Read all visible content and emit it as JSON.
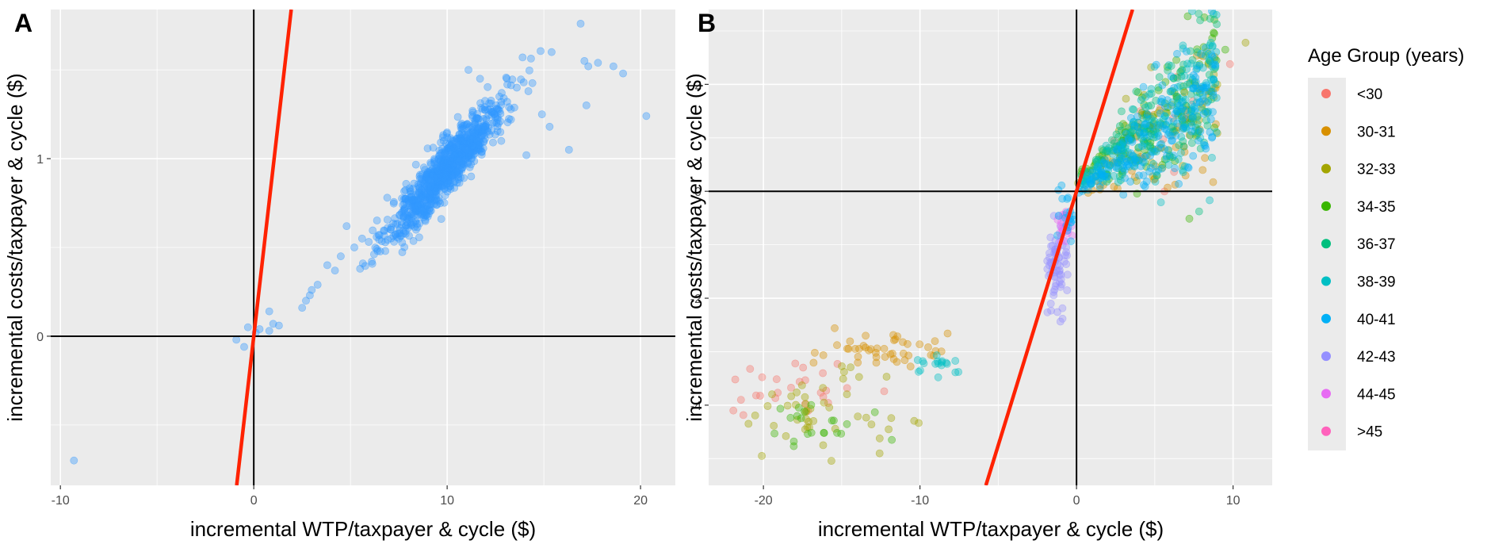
{
  "chart_data": [
    {
      "panel_label": "A",
      "type": "scatter",
      "xlabel": "incremental WTP/taxpayer & cycle ($)",
      "ylabel": "incremental costs/taxpayer & cycle ($)",
      "xlim": [
        -10.5,
        21.8
      ],
      "ylim": [
        -0.84,
        1.84
      ],
      "x_ticks": [
        -10,
        0,
        10,
        20
      ],
      "y_ticks": [
        0,
        1
      ],
      "point_color": "#3399ff",
      "reference_line": {
        "color": "#ff2200",
        "slope": 0.95,
        "intercept": 0
      },
      "cluster": {
        "center_x": 10,
        "center_y": 0.95,
        "spread_x": 1.5,
        "spread_y": 0.12,
        "count": 900
      },
      "points": [
        [
          -9.3,
          -0.7
        ],
        [
          -0.9,
          -0.02
        ],
        [
          -0.5,
          -0.06
        ],
        [
          -0.3,
          0.05
        ],
        [
          0.1,
          0.02
        ],
        [
          0.3,
          0.04
        ],
        [
          0.8,
          0.03
        ],
        [
          1.0,
          0.07
        ],
        [
          0.8,
          0.14
        ],
        [
          1.3,
          0.06
        ],
        [
          2.5,
          0.16
        ],
        [
          2.7,
          0.2
        ],
        [
          2.9,
          0.23
        ],
        [
          3.0,
          0.26
        ],
        [
          3.3,
          0.29
        ],
        [
          3.8,
          0.4
        ],
        [
          4.2,
          0.37
        ],
        [
          4.5,
          0.45
        ],
        [
          5.2,
          0.5
        ],
        [
          5.6,
          0.55
        ],
        [
          6.1,
          0.42
        ],
        [
          6.5,
          0.57
        ],
        [
          7.1,
          0.6
        ],
        [
          4.8,
          0.62
        ],
        [
          5.5,
          0.38
        ],
        [
          6.8,
          0.48
        ],
        [
          7.5,
          0.55
        ],
        [
          8.0,
          0.66
        ],
        [
          16.9,
          1.76
        ],
        [
          17.1,
          1.55
        ],
        [
          17.3,
          1.52
        ],
        [
          17.8,
          1.54
        ],
        [
          18.6,
          1.52
        ],
        [
          19.1,
          1.48
        ],
        [
          20.3,
          1.24
        ],
        [
          16.3,
          1.05
        ],
        [
          15.4,
          1.6
        ],
        [
          15.3,
          1.18
        ],
        [
          14.9,
          1.25
        ],
        [
          14.2,
          1.38
        ],
        [
          13.6,
          1.4
        ],
        [
          13.9,
          1.57
        ],
        [
          13.1,
          1.32
        ],
        [
          12.7,
          1.35
        ],
        [
          12.2,
          1.28
        ],
        [
          11.7,
          1.45
        ],
        [
          11.1,
          1.5
        ],
        [
          14.1,
          1.02
        ],
        [
          13.3,
          1.22
        ],
        [
          12.8,
          1.1
        ],
        [
          17.2,
          1.3
        ],
        [
          6.9,
          0.78
        ],
        [
          7.8,
          0.72
        ],
        [
          8.5,
          0.75
        ]
      ]
    },
    {
      "panel_label": "B",
      "type": "scatter",
      "xlabel": "incremental WTP/taxpayer & cycle ($)",
      "ylabel": "incremental costs/taxpayer & cycle ($)",
      "xlim": [
        -23.5,
        12.5
      ],
      "ylim": [
        -5.5,
        3.4
      ],
      "x_ticks": [
        -20,
        -10,
        0,
        10
      ],
      "y_ticks": [
        -4,
        -2,
        0,
        2
      ],
      "reference_line": {
        "color": "#ff2200",
        "slope": 0.95,
        "intercept": 0
      },
      "legend": {
        "title": "Age Group (years)",
        "placement": "right",
        "groups": [
          {
            "name": "<30",
            "color": "#f8766d"
          },
          {
            "name": "30-31",
            "color": "#d89000"
          },
          {
            "name": "32-33",
            "color": "#a3a500"
          },
          {
            "name": "34-35",
            "color": "#39b600"
          },
          {
            "name": "36-37",
            "color": "#00bf7d"
          },
          {
            "name": "38-39",
            "color": "#00bfc4"
          },
          {
            "name": "40-41",
            "color": "#00b0f6"
          },
          {
            "name": "42-43",
            "color": "#9590ff"
          },
          {
            "name": "44-45",
            "color": "#e76bf3"
          },
          {
            "name": ">45",
            "color": "#ff62bc"
          }
        ]
      },
      "clusters": [
        {
          "group": "<30",
          "center_x": -17.5,
          "center_y": -3.7,
          "spread_x": 2.0,
          "spread_y": 0.3,
          "count": 25
        },
        {
          "group": "30-31",
          "center_x": -12.5,
          "center_y": -3.0,
          "spread_x": 2.3,
          "spread_y": 0.18,
          "count": 45
        },
        {
          "group": "32-33",
          "center_x": -16.5,
          "center_y": -4.1,
          "spread_x": 2.2,
          "spread_y": 0.35,
          "count": 45
        },
        {
          "group": "34-35",
          "center_x": -17.0,
          "center_y": -4.4,
          "spread_x": 1.6,
          "spread_y": 0.3,
          "count": 20
        },
        {
          "group": "38-39",
          "center_x": -9.0,
          "center_y": -3.3,
          "spread_x": 1.2,
          "spread_y": 0.12,
          "count": 18
        },
        {
          "group": "42-43",
          "center_x": -1.2,
          "center_y": -1.35,
          "spread_x": 0.3,
          "spread_y": 0.4,
          "count": 70
        },
        {
          "group": "44-45",
          "center_x": -0.8,
          "center_y": -0.65,
          "spread_x": 0.25,
          "spread_y": 0.2,
          "count": 25
        },
        {
          "group": "40-41",
          "center_x": -0.6,
          "center_y": -0.4,
          "spread_x": 0.25,
          "spread_y": 0.25,
          "count": 20
        }
      ],
      "band": {
        "x_range": [
          0,
          9
        ],
        "slope": 0.22,
        "groups": [
          {
            "group": "<30",
            "offset": 0.05,
            "count": 25
          },
          {
            "group": "30-31",
            "offset": -0.1,
            "count": 60
          },
          {
            "group": "32-33",
            "offset": 0.12,
            "count": 60
          },
          {
            "group": "34-35",
            "offset": 0.25,
            "count": 110
          },
          {
            "group": "36-37",
            "offset": 0.15,
            "count": 140
          },
          {
            "group": "38-39",
            "offset": 0.05,
            "count": 160
          },
          {
            "group": "40-41",
            "offset": -0.05,
            "count": 180
          }
        ]
      },
      "extra_points": [
        {
          "group": "<30",
          "x": 9.8,
          "y": 2.38
        },
        {
          "group": "34-35",
          "x": 8.8,
          "y": 2.95
        },
        {
          "group": "32-33",
          "x": 10.8,
          "y": 2.78
        },
        {
          "group": "34-35",
          "x": 9.5,
          "y": 2.65
        },
        {
          "group": "32-33",
          "x": 6.9,
          "y": 1.85
        },
        {
          "group": "<30",
          "x": -21.8,
          "y": -3.52
        },
        {
          "group": "32-33",
          "x": -20.1,
          "y": -4.95
        },
        {
          "group": "34-35",
          "x": -11.8,
          "y": -4.65
        }
      ]
    }
  ]
}
